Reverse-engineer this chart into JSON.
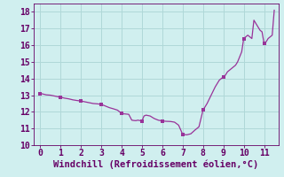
{
  "title": "",
  "xlabel": "Windchill (Refroidissement éolien,°C)",
  "ylabel": "",
  "background_color": "#d0efef",
  "grid_color": "#b0d8d8",
  "line_color": "#993399",
  "marker_color": "#993399",
  "xlim": [
    -0.3,
    11.7
  ],
  "ylim": [
    10,
    18.5
  ],
  "xticks": [
    0,
    1,
    2,
    3,
    4,
    5,
    6,
    7,
    8,
    9,
    10,
    11
  ],
  "yticks": [
    10,
    11,
    12,
    13,
    14,
    15,
    16,
    17,
    18
  ],
  "x": [
    0.0,
    0.1,
    0.2,
    0.3,
    0.5,
    0.7,
    0.9,
    1.0,
    1.1,
    1.2,
    1.4,
    1.6,
    1.8,
    2.0,
    2.2,
    2.4,
    2.6,
    2.8,
    3.0,
    3.2,
    3.4,
    3.6,
    3.8,
    4.0,
    4.1,
    4.2,
    4.35,
    4.5,
    4.6,
    4.7,
    4.8,
    5.0,
    5.1,
    5.2,
    5.4,
    5.6,
    5.8,
    6.0,
    6.2,
    6.4,
    6.6,
    6.8,
    7.0,
    7.1,
    7.2,
    7.4,
    7.6,
    7.8,
    8.0,
    8.2,
    8.4,
    8.6,
    8.8,
    9.0,
    9.1,
    9.2,
    9.3,
    9.4,
    9.5,
    9.6,
    9.7,
    9.8,
    9.9,
    10.0,
    10.1,
    10.2,
    10.3,
    10.4,
    10.5,
    10.6,
    10.7,
    10.8,
    10.9,
    11.0,
    11.1,
    11.2,
    11.3,
    11.4,
    11.5
  ],
  "y": [
    13.1,
    13.08,
    13.05,
    13.02,
    13.0,
    12.95,
    12.9,
    12.88,
    12.85,
    12.82,
    12.78,
    12.72,
    12.68,
    12.65,
    12.6,
    12.55,
    12.5,
    12.48,
    12.45,
    12.35,
    12.25,
    12.18,
    12.1,
    11.9,
    11.88,
    11.87,
    11.85,
    11.5,
    11.48,
    11.47,
    11.5,
    11.45,
    11.75,
    11.8,
    11.75,
    11.6,
    11.5,
    11.45,
    11.43,
    11.42,
    11.38,
    11.2,
    10.65,
    10.63,
    10.62,
    10.68,
    10.9,
    11.1,
    12.1,
    12.5,
    13.0,
    13.5,
    13.9,
    14.1,
    14.2,
    14.4,
    14.5,
    14.6,
    14.7,
    14.8,
    15.0,
    15.3,
    15.6,
    16.4,
    16.5,
    16.6,
    16.5,
    16.4,
    17.5,
    17.3,
    17.1,
    16.9,
    16.8,
    16.1,
    16.2,
    16.4,
    16.5,
    16.6,
    18.1
  ],
  "marker_x": [
    0.0,
    1.0,
    2.0,
    3.0,
    4.0,
    5.0,
    6.0,
    7.0,
    8.0,
    9.0,
    10.0,
    11.0
  ],
  "marker_y": [
    13.1,
    12.88,
    12.65,
    12.45,
    11.9,
    11.45,
    11.45,
    10.65,
    12.1,
    14.1,
    16.4,
    16.1
  ],
  "font_color": "#660066",
  "tick_fontsize": 7,
  "label_fontsize": 7.5
}
